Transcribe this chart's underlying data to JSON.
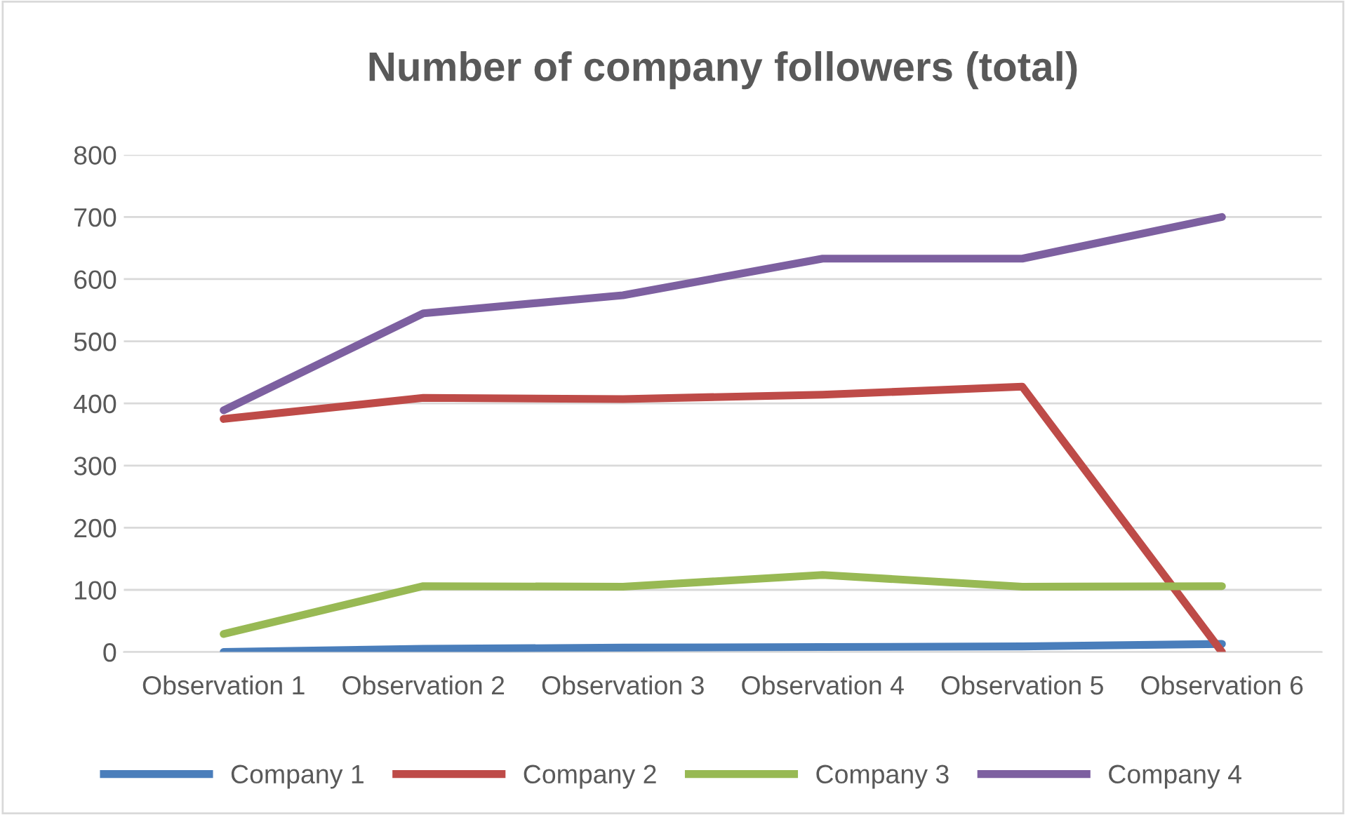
{
  "chart_data": {
    "type": "line",
    "title": "Number of company followers (total)",
    "categories": [
      "Observation 1",
      "Observation 2",
      "Observation 3",
      "Observation 4",
      "Observation 5",
      "Observation 6"
    ],
    "series": [
      {
        "name": "Company 1",
        "color": "#4a7ebb",
        "values": [
          0,
          5,
          7,
          8,
          9,
          13
        ]
      },
      {
        "name": "Company 2",
        "color": "#be4b48",
        "values": [
          375,
          409,
          407,
          414,
          427,
          0
        ]
      },
      {
        "name": "Company 3",
        "color": "#98b954",
        "values": [
          29,
          106,
          105,
          124,
          105,
          106
        ]
      },
      {
        "name": "Company 4",
        "color": "#7d60a0",
        "values": [
          389,
          545,
          574,
          633,
          633,
          700
        ]
      }
    ],
    "ylim": [
      0,
      800
    ],
    "yticks": [
      0,
      100,
      200,
      300,
      400,
      500,
      600,
      700,
      800
    ],
    "grid": "y",
    "legend": "bottom",
    "marker": "none",
    "line_style": "solid"
  }
}
